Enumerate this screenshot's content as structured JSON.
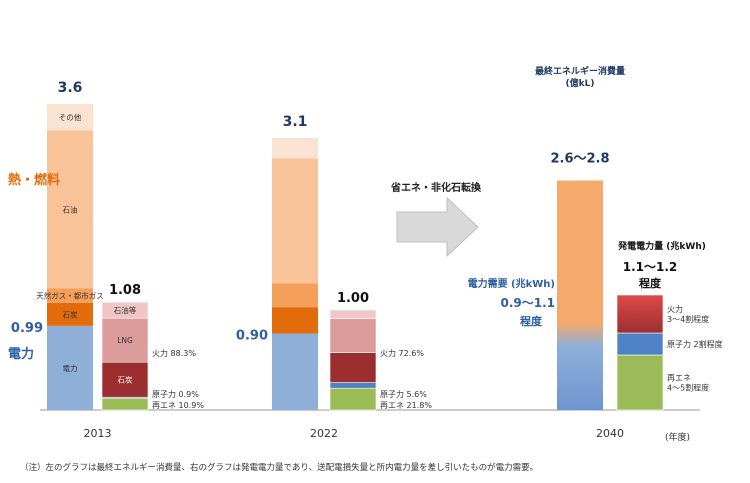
{
  "colors": {
    "electricity": "#8fafd9",
    "heat_fuel": "#e46c0a",
    "blue_label": "#2e5fa3",
    "navy_label": "#1f3864",
    "other": "#fbe3d2",
    "oil": "#f9c39a",
    "gas": "#f5a05a",
    "coal": "#e36c0a",
    "fossil_light": "#dd9c9c",
    "fossil_mid": "#c86060",
    "fossil_dark": "#9b2f2f",
    "nuclear": "#4f81c7",
    "renewable": "#9bbb59",
    "arrow": "#d9d9d9",
    "axis": "#999999"
  },
  "chart_data": {
    "type": "bar",
    "subtype": "stacked",
    "unit_final": "最終エネルギー消費量 (億kL)",
    "unit_power": "発電電力量 (兆kWh)",
    "x_unit": "(年度)",
    "note": "（注）左のグラフは最終エネルギー消費量、右のグラフは発電電力量であり、送配電損失量と所内電力量を差し引いたものが電力需要。",
    "arrow_label": "省エネ・非化石転換",
    "side_labels": {
      "heat": "熱・燃料",
      "power": "電力"
    },
    "years": [
      {
        "year": "2013",
        "final_total": "3.6",
        "final_segments": [
          {
            "name": "電力",
            "value": 0.99,
            "label": "電力"
          },
          {
            "name": "石炭",
            "value": 0.27,
            "label": "石炭"
          },
          {
            "name": "天然ガス・都市ガス",
            "value": 0.17,
            "label": "天然ガス・都市ガス"
          },
          {
            "name": "石油",
            "value": 1.86,
            "label": "石油"
          },
          {
            "name": "その他",
            "value": 0.31,
            "label": "その他"
          }
        ],
        "electricity_demand": "0.99",
        "power_total": "1.08",
        "power_segments": [
          {
            "name": "再エネ",
            "value": 0.118,
            "label": "",
            "annot": "再エネ 10.9%"
          },
          {
            "name": "原子力",
            "value": 0.01,
            "label": "",
            "annot": "原子力 0.9%"
          },
          {
            "name": "石炭",
            "value": 0.35,
            "label": "石炭",
            "annot": ""
          },
          {
            "name": "LNG",
            "value": 0.44,
            "label": "LNG",
            "annot": ""
          },
          {
            "name": "石油等",
            "value": 0.16,
            "label": "石油等",
            "annot": ""
          }
        ],
        "fossil_annot": "火力 88.3%"
      },
      {
        "year": "2022",
        "final_total": "3.1",
        "final_segments": [
          {
            "name": "電力",
            "value": 0.9
          },
          {
            "name": "石炭",
            "value": 0.31
          },
          {
            "name": "天然ガス・都市ガス",
            "value": 0.28
          },
          {
            "name": "石油",
            "value": 1.47
          },
          {
            "name": "その他",
            "value": 0.24
          }
        ],
        "electricity_demand": "0.90",
        "power_total": "1.00",
        "power_segments": [
          {
            "name": "再エネ",
            "value": 0.218,
            "annot": "再エネ 21.8%"
          },
          {
            "name": "原子力",
            "value": 0.056,
            "annot": "原子力 5.6%"
          },
          {
            "name": "石炭",
            "value": 0.3
          },
          {
            "name": "LNG",
            "value": 0.34
          },
          {
            "name": "石油等",
            "value": 0.086
          }
        ],
        "fossil_annot": "火力 72.6%"
      },
      {
        "year": "2040",
        "final_total": "2.6〜2.8",
        "final_segments": [
          {
            "name": "電力",
            "value": 0.9
          },
          {
            "name": "熱・燃料",
            "value": 1.7
          }
        ],
        "electricity_demand": "0.9〜1.1",
        "electricity_demand_suffix": "程度",
        "electricity_demand_label": "電力需要 (兆kWh)",
        "power_total": "1.1〜1.2",
        "power_total_suffix": "程度",
        "power_segments": [
          {
            "name": "再エネ",
            "value": 0.55,
            "annot": "再エネ\n4〜5割程度"
          },
          {
            "name": "原子力",
            "value": 0.22,
            "annot": "原子力 2割程度"
          },
          {
            "name": "火力",
            "value": 0.38,
            "annot": "火力\n3〜4割程度"
          }
        ]
      }
    ]
  }
}
